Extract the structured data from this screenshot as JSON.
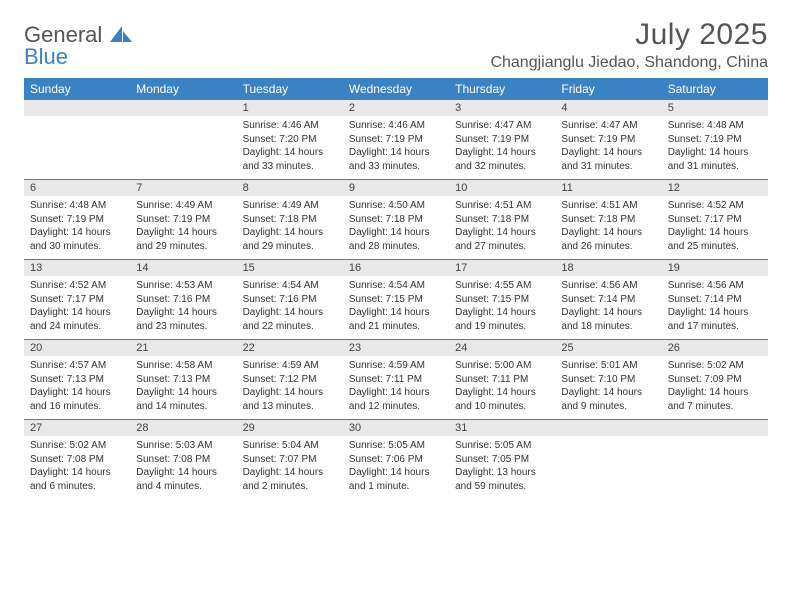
{
  "logo": {
    "word1": "General",
    "word2": "Blue",
    "icon_color": "#3b82c4"
  },
  "title": "July 2025",
  "location": "Changjianglu Jiedao, Shandong, China",
  "colors": {
    "header_bg": "#3b82c4",
    "header_text": "#ffffff",
    "daynum_bg": "#e8e8e8",
    "row_border": "#3b82c4",
    "body_text": "#333333",
    "title_text": "#555555"
  },
  "fonts": {
    "title_pt": 30,
    "location_pt": 16,
    "th_pt": 12,
    "daynum_pt": 11,
    "cell_pt": 10
  },
  "days_of_week": [
    "Sunday",
    "Monday",
    "Tuesday",
    "Wednesday",
    "Thursday",
    "Friday",
    "Saturday"
  ],
  "weeks": [
    [
      null,
      null,
      {
        "n": "1",
        "sunrise": "Sunrise: 4:46 AM",
        "sunset": "Sunset: 7:20 PM",
        "day1": "Daylight: 14 hours",
        "day2": "and 33 minutes."
      },
      {
        "n": "2",
        "sunrise": "Sunrise: 4:46 AM",
        "sunset": "Sunset: 7:19 PM",
        "day1": "Daylight: 14 hours",
        "day2": "and 33 minutes."
      },
      {
        "n": "3",
        "sunrise": "Sunrise: 4:47 AM",
        "sunset": "Sunset: 7:19 PM",
        "day1": "Daylight: 14 hours",
        "day2": "and 32 minutes."
      },
      {
        "n": "4",
        "sunrise": "Sunrise: 4:47 AM",
        "sunset": "Sunset: 7:19 PM",
        "day1": "Daylight: 14 hours",
        "day2": "and 31 minutes."
      },
      {
        "n": "5",
        "sunrise": "Sunrise: 4:48 AM",
        "sunset": "Sunset: 7:19 PM",
        "day1": "Daylight: 14 hours",
        "day2": "and 31 minutes."
      }
    ],
    [
      {
        "n": "6",
        "sunrise": "Sunrise: 4:48 AM",
        "sunset": "Sunset: 7:19 PM",
        "day1": "Daylight: 14 hours",
        "day2": "and 30 minutes."
      },
      {
        "n": "7",
        "sunrise": "Sunrise: 4:49 AM",
        "sunset": "Sunset: 7:19 PM",
        "day1": "Daylight: 14 hours",
        "day2": "and 29 minutes."
      },
      {
        "n": "8",
        "sunrise": "Sunrise: 4:49 AM",
        "sunset": "Sunset: 7:18 PM",
        "day1": "Daylight: 14 hours",
        "day2": "and 29 minutes."
      },
      {
        "n": "9",
        "sunrise": "Sunrise: 4:50 AM",
        "sunset": "Sunset: 7:18 PM",
        "day1": "Daylight: 14 hours",
        "day2": "and 28 minutes."
      },
      {
        "n": "10",
        "sunrise": "Sunrise: 4:51 AM",
        "sunset": "Sunset: 7:18 PM",
        "day1": "Daylight: 14 hours",
        "day2": "and 27 minutes."
      },
      {
        "n": "11",
        "sunrise": "Sunrise: 4:51 AM",
        "sunset": "Sunset: 7:18 PM",
        "day1": "Daylight: 14 hours",
        "day2": "and 26 minutes."
      },
      {
        "n": "12",
        "sunrise": "Sunrise: 4:52 AM",
        "sunset": "Sunset: 7:17 PM",
        "day1": "Daylight: 14 hours",
        "day2": "and 25 minutes."
      }
    ],
    [
      {
        "n": "13",
        "sunrise": "Sunrise: 4:52 AM",
        "sunset": "Sunset: 7:17 PM",
        "day1": "Daylight: 14 hours",
        "day2": "and 24 minutes."
      },
      {
        "n": "14",
        "sunrise": "Sunrise: 4:53 AM",
        "sunset": "Sunset: 7:16 PM",
        "day1": "Daylight: 14 hours",
        "day2": "and 23 minutes."
      },
      {
        "n": "15",
        "sunrise": "Sunrise: 4:54 AM",
        "sunset": "Sunset: 7:16 PM",
        "day1": "Daylight: 14 hours",
        "day2": "and 22 minutes."
      },
      {
        "n": "16",
        "sunrise": "Sunrise: 4:54 AM",
        "sunset": "Sunset: 7:15 PM",
        "day1": "Daylight: 14 hours",
        "day2": "and 21 minutes."
      },
      {
        "n": "17",
        "sunrise": "Sunrise: 4:55 AM",
        "sunset": "Sunset: 7:15 PM",
        "day1": "Daylight: 14 hours",
        "day2": "and 19 minutes."
      },
      {
        "n": "18",
        "sunrise": "Sunrise: 4:56 AM",
        "sunset": "Sunset: 7:14 PM",
        "day1": "Daylight: 14 hours",
        "day2": "and 18 minutes."
      },
      {
        "n": "19",
        "sunrise": "Sunrise: 4:56 AM",
        "sunset": "Sunset: 7:14 PM",
        "day1": "Daylight: 14 hours",
        "day2": "and 17 minutes."
      }
    ],
    [
      {
        "n": "20",
        "sunrise": "Sunrise: 4:57 AM",
        "sunset": "Sunset: 7:13 PM",
        "day1": "Daylight: 14 hours",
        "day2": "and 16 minutes."
      },
      {
        "n": "21",
        "sunrise": "Sunrise: 4:58 AM",
        "sunset": "Sunset: 7:13 PM",
        "day1": "Daylight: 14 hours",
        "day2": "and 14 minutes."
      },
      {
        "n": "22",
        "sunrise": "Sunrise: 4:59 AM",
        "sunset": "Sunset: 7:12 PM",
        "day1": "Daylight: 14 hours",
        "day2": "and 13 minutes."
      },
      {
        "n": "23",
        "sunrise": "Sunrise: 4:59 AM",
        "sunset": "Sunset: 7:11 PM",
        "day1": "Daylight: 14 hours",
        "day2": "and 12 minutes."
      },
      {
        "n": "24",
        "sunrise": "Sunrise: 5:00 AM",
        "sunset": "Sunset: 7:11 PM",
        "day1": "Daylight: 14 hours",
        "day2": "and 10 minutes."
      },
      {
        "n": "25",
        "sunrise": "Sunrise: 5:01 AM",
        "sunset": "Sunset: 7:10 PM",
        "day1": "Daylight: 14 hours",
        "day2": "and 9 minutes."
      },
      {
        "n": "26",
        "sunrise": "Sunrise: 5:02 AM",
        "sunset": "Sunset: 7:09 PM",
        "day1": "Daylight: 14 hours",
        "day2": "and 7 minutes."
      }
    ],
    [
      {
        "n": "27",
        "sunrise": "Sunrise: 5:02 AM",
        "sunset": "Sunset: 7:08 PM",
        "day1": "Daylight: 14 hours",
        "day2": "and 6 minutes."
      },
      {
        "n": "28",
        "sunrise": "Sunrise: 5:03 AM",
        "sunset": "Sunset: 7:08 PM",
        "day1": "Daylight: 14 hours",
        "day2": "and 4 minutes."
      },
      {
        "n": "29",
        "sunrise": "Sunrise: 5:04 AM",
        "sunset": "Sunset: 7:07 PM",
        "day1": "Daylight: 14 hours",
        "day2": "and 2 minutes."
      },
      {
        "n": "30",
        "sunrise": "Sunrise: 5:05 AM",
        "sunset": "Sunset: 7:06 PM",
        "day1": "Daylight: 14 hours",
        "day2": "and 1 minute."
      },
      {
        "n": "31",
        "sunrise": "Sunrise: 5:05 AM",
        "sunset": "Sunset: 7:05 PM",
        "day1": "Daylight: 13 hours",
        "day2": "and 59 minutes."
      },
      null,
      null
    ]
  ]
}
